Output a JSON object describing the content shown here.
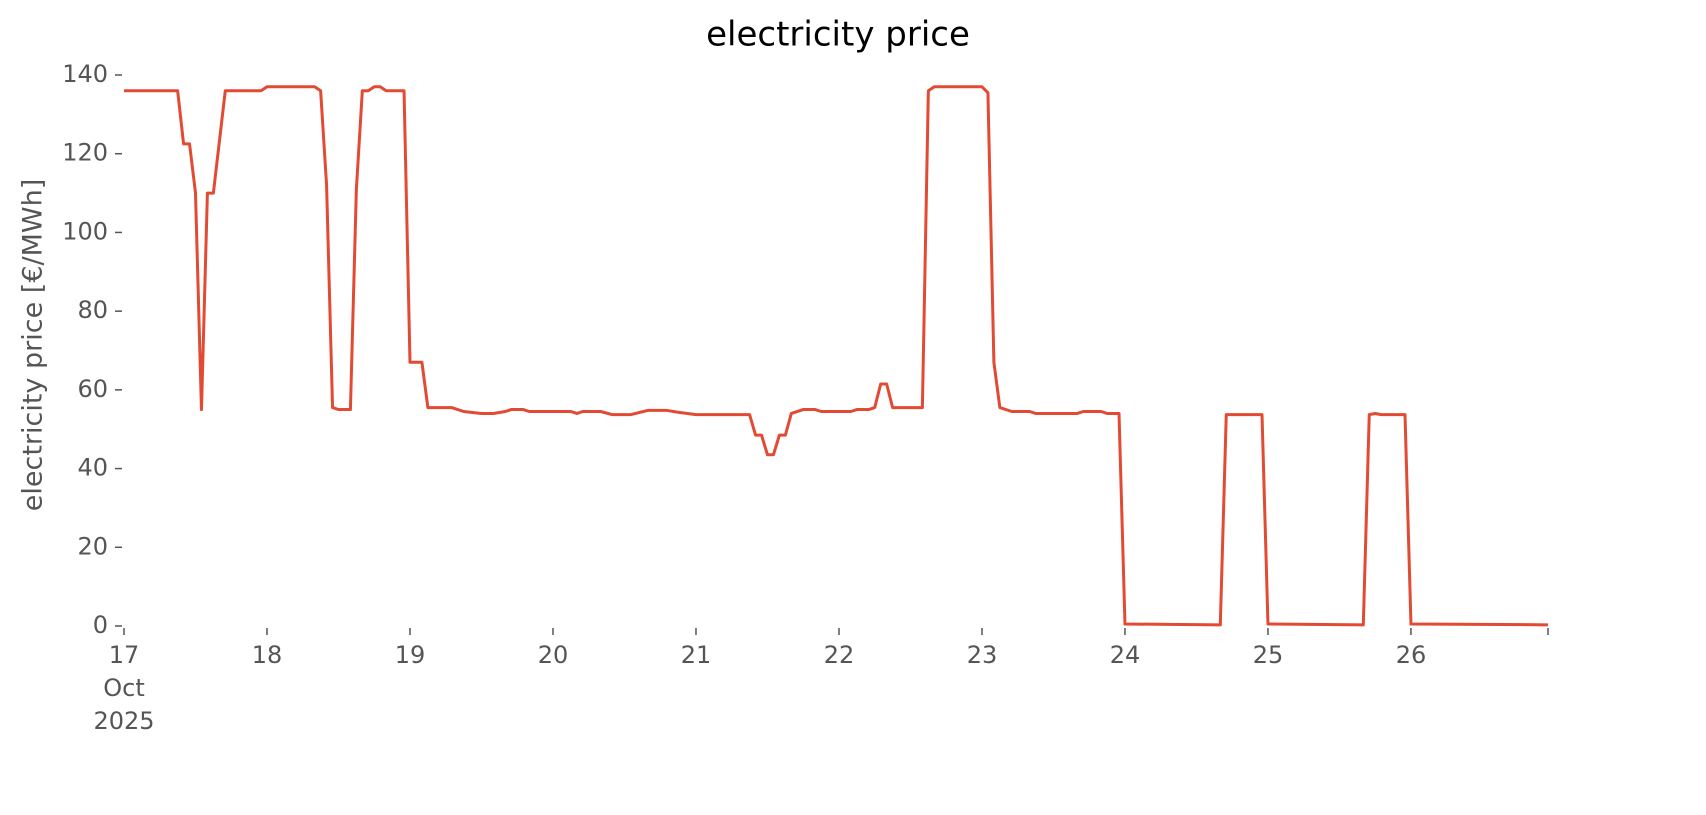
{
  "chart_data": {
    "type": "line",
    "title": "electricity price",
    "y_label": "electricity price [€/MWh]",
    "x": [
      "2025-10-17T00:00",
      "2025-10-17T09:00",
      "2025-10-17T10:00",
      "2025-10-17T11:00",
      "2025-10-17T12:00",
      "2025-10-17T13:00",
      "2025-10-17T14:00",
      "2025-10-17T15:00",
      "2025-10-17T17:00",
      "2025-10-17T23:00",
      "2025-10-18T00:00",
      "2025-10-18T08:00",
      "2025-10-18T09:00",
      "2025-10-18T10:00",
      "2025-10-18T11:00",
      "2025-10-18T12:00",
      "2025-10-18T14:00",
      "2025-10-18T15:00",
      "2025-10-18T16:00",
      "2025-10-18T17:00",
      "2025-10-18T18:00",
      "2025-10-18T19:00",
      "2025-10-18T20:00",
      "2025-10-18T23:00",
      "2025-10-19T00:00",
      "2025-10-19T02:00",
      "2025-10-19T03:00",
      "2025-10-19T07:00",
      "2025-10-19T09:00",
      "2025-10-19T12:00",
      "2025-10-19T14:00",
      "2025-10-19T16:00",
      "2025-10-19T17:00",
      "2025-10-19T19:00",
      "2025-10-19T20:00",
      "2025-10-20T03:00",
      "2025-10-20T04:00",
      "2025-10-20T05:00",
      "2025-10-20T08:00",
      "2025-10-20T10:00",
      "2025-10-20T13:00",
      "2025-10-20T16:00",
      "2025-10-20T19:00",
      "2025-10-20T21:00",
      "2025-10-21T00:00",
      "2025-10-21T09:00",
      "2025-10-21T10:00",
      "2025-10-21T11:00",
      "2025-10-21T12:00",
      "2025-10-21T13:00",
      "2025-10-21T14:00",
      "2025-10-21T15:00",
      "2025-10-21T16:00",
      "2025-10-21T18:00",
      "2025-10-21T20:00",
      "2025-10-21T21:00",
      "2025-10-22T02:00",
      "2025-10-22T03:00",
      "2025-10-22T05:00",
      "2025-10-22T06:00",
      "2025-10-22T07:00",
      "2025-10-22T08:00",
      "2025-10-22T09:00",
      "2025-10-22T14:00",
      "2025-10-22T15:00",
      "2025-10-22T16:00",
      "2025-10-23T00:00",
      "2025-10-23T01:00",
      "2025-10-23T02:00",
      "2025-10-23T03:00",
      "2025-10-23T05:00",
      "2025-10-23T08:00",
      "2025-10-23T09:00",
      "2025-10-23T16:00",
      "2025-10-23T17:00",
      "2025-10-23T20:00",
      "2025-10-23T21:00",
      "2025-10-23T23:00",
      "2025-10-24T00:00",
      "2025-10-24T16:00",
      "2025-10-24T17:00",
      "2025-10-24T23:00",
      "2025-10-25T00:00",
      "2025-10-25T16:00",
      "2025-10-25T17:00",
      "2025-10-25T18:00",
      "2025-10-25T19:00",
      "2025-10-25T23:00",
      "2025-10-26T00:00",
      "2025-10-26T23:00"
    ],
    "series": [
      {
        "name": "electricity price",
        "color": "#e24a33",
        "values": [
          136,
          136,
          122.5,
          122.5,
          110,
          55,
          110,
          110,
          136,
          136,
          137,
          137,
          136,
          112,
          55.5,
          55,
          55,
          111,
          136,
          136,
          137,
          137,
          136,
          136,
          67,
          67,
          55.5,
          55.5,
          54.5,
          54,
          54,
          54.5,
          55,
          55,
          54.5,
          54.5,
          54,
          54.5,
          54.5,
          53.7,
          53.7,
          54.8,
          54.8,
          54.3,
          53.7,
          53.7,
          48.5,
          48.5,
          43.5,
          43.5,
          48.5,
          48.5,
          54,
          55,
          55,
          54.5,
          54.5,
          55,
          55,
          55.5,
          61.5,
          61.5,
          55.5,
          55.5,
          136,
          137,
          137,
          135.5,
          67,
          55.5,
          54.5,
          54.5,
          54,
          54,
          54.5,
          54.5,
          54,
          54,
          0.5,
          0.3,
          53.7,
          53.7,
          0.5,
          0.3,
          53.7,
          54,
          53.7,
          53.7,
          0.5,
          0.3
        ]
      }
    ],
    "xlim": [
      "2025-10-17T00:00",
      "2025-10-26T23:00"
    ],
    "xticks": [
      {
        "value": "2025-10-17T00:00",
        "label": [
          "17",
          "Oct",
          "2025"
        ]
      },
      {
        "value": "2025-10-18T00:00",
        "label": "18"
      },
      {
        "value": "2025-10-19T00:00",
        "label": "19"
      },
      {
        "value": "2025-10-20T00:00",
        "label": "20"
      },
      {
        "value": "2025-10-21T00:00",
        "label": "21"
      },
      {
        "value": "2025-10-22T00:00",
        "label": "22"
      },
      {
        "value": "2025-10-23T00:00",
        "label": "23"
      },
      {
        "value": "2025-10-24T00:00",
        "label": "24"
      },
      {
        "value": "2025-10-25T00:00",
        "label": "25"
      },
      {
        "value": "2025-10-26T00:00",
        "label": "26"
      }
    ],
    "ylim": [
      0,
      140
    ],
    "yticks": [
      0,
      20,
      40,
      60,
      80,
      100,
      120,
      140
    ],
    "grid": false
  }
}
